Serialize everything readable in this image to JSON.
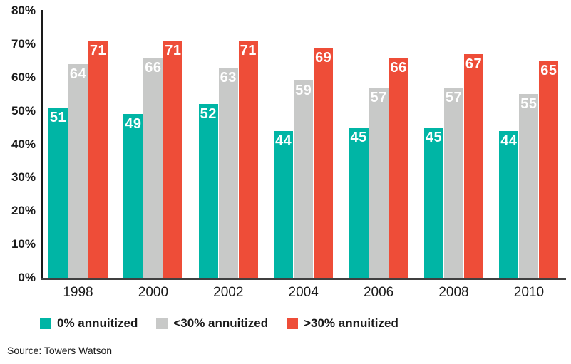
{
  "chart_data": {
    "type": "bar",
    "categories": [
      "1998",
      "2000",
      "2002",
      "2004",
      "2006",
      "2008",
      "2010"
    ],
    "series": [
      {
        "name": "0% annuitized",
        "color": "#00b5a5",
        "values": [
          51,
          49,
          52,
          44,
          45,
          45,
          44
        ]
      },
      {
        "name": "<30% annuitized",
        "color": "#c8c9c8",
        "values": [
          64,
          66,
          63,
          59,
          57,
          57,
          55
        ]
      },
      {
        "name": ">30% annuitized",
        "color": "#ee4d38",
        "values": [
          71,
          71,
          71,
          69,
          66,
          67,
          65
        ]
      }
    ],
    "title": "",
    "xlabel": "",
    "ylabel": "",
    "ylim": [
      0,
      80
    ],
    "ytick_step": 10,
    "ytick_labels": [
      "0%",
      "10%",
      "20%",
      "30%",
      "40%",
      "50%",
      "60%",
      "70%",
      "80%"
    ],
    "grid": false,
    "legend_position": "bottom",
    "value_labels_shown": true
  },
  "source": {
    "text": "Source: Towers Watson"
  }
}
